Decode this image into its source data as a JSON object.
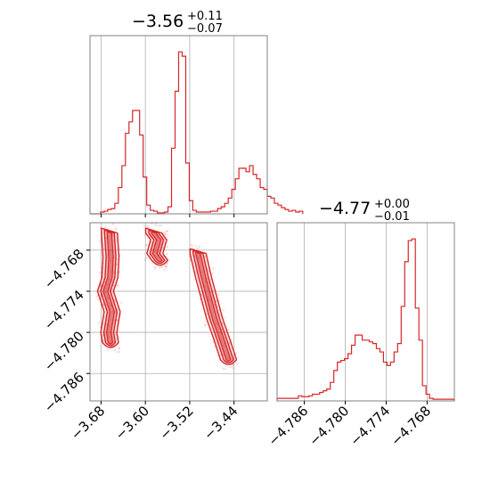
{
  "chart_data": {
    "type": "corner",
    "colors": {
      "series": "#d62728",
      "frame": "#808080",
      "grid": "#b0b0b0"
    },
    "params": [
      {
        "title": {
          "median": "−3.56",
          "plus": "+0.11",
          "minus": "−0.07"
        },
        "xlim": [
          -3.7,
          -3.38
        ],
        "ticks": [
          -3.68,
          -3.6,
          -3.52,
          -3.44
        ],
        "tick_labels": [
          "−3.68",
          "−3.60",
          "−3.52",
          "−3.44"
        ]
      },
      {
        "title": {
          "median": "−4.77",
          "plus": "+0.00",
          "minus": "−0.01"
        },
        "xlim": [
          -4.79,
          -4.764
        ],
        "ticks": [
          -4.786,
          -4.78,
          -4.774,
          -4.768
        ],
        "tick_labels": [
          "−4.786",
          "−4.780",
          "−4.774",
          "−4.768"
        ]
      }
    ],
    "hist1": {
      "edges_start": -3.7,
      "bin_width": 0.0064,
      "counts": [
        0,
        0,
        0,
        2,
        3,
        5,
        6,
        12,
        30,
        55,
        92,
        105,
        118,
        118,
        90,
        42,
        10,
        4,
        3,
        1,
        1,
        2,
        8,
        75,
        140,
        185,
        180,
        58,
        15,
        4,
        2,
        2,
        2,
        2,
        3,
        3,
        6,
        8,
        12,
        18,
        28,
        40,
        52,
        52,
        48,
        55,
        45,
        40,
        30,
        28,
        20,
        18,
        12,
        10,
        7,
        5,
        3,
        4,
        2,
        3
      ]
    },
    "hist2": {
      "edges_start": -4.79,
      "bin_width": 0.00052,
      "counts": [
        3,
        3,
        3,
        3,
        3,
        3,
        6,
        5,
        5,
        6,
        8,
        8,
        10,
        12,
        14,
        22,
        36,
        46,
        48,
        50,
        56,
        66,
        78,
        78,
        72,
        72,
        70,
        68,
        62,
        58,
        46,
        42,
        46,
        58,
        68,
        112,
        165,
        190,
        192,
        110,
        72,
        18,
        8,
        3,
        2,
        2,
        2,
        2,
        2,
        2
      ]
    },
    "scatter": {
      "x_label_param": 0,
      "y_label_param": 1,
      "clusters": [
        {
          "name": "",
          "points": [
            [
              -3.665,
              -4.7655
            ],
            [
              -3.662,
              -4.769
            ],
            [
              -3.664,
              -4.772
            ],
            [
              -3.672,
              -4.774
            ],
            [
              -3.66,
              -4.777
            ],
            [
              -3.666,
              -4.78
            ],
            [
              -3.663,
              -4.7815
            ]
          ]
        },
        {
          "name": "",
          "points": [
            [
              -3.585,
              -4.7655
            ],
            [
              -3.576,
              -4.7665
            ],
            [
              -3.583,
              -4.7685
            ],
            [
              -3.574,
              -4.7695
            ]
          ]
        },
        {
          "name": "",
          "points": [
            [
              -3.505,
              -4.7685
            ],
            [
              -3.495,
              -4.772
            ],
            [
              -3.485,
              -4.775
            ],
            [
              -3.475,
              -4.778
            ],
            [
              -3.462,
              -4.781
            ],
            [
              -3.45,
              -4.784
            ]
          ]
        }
      ]
    }
  }
}
